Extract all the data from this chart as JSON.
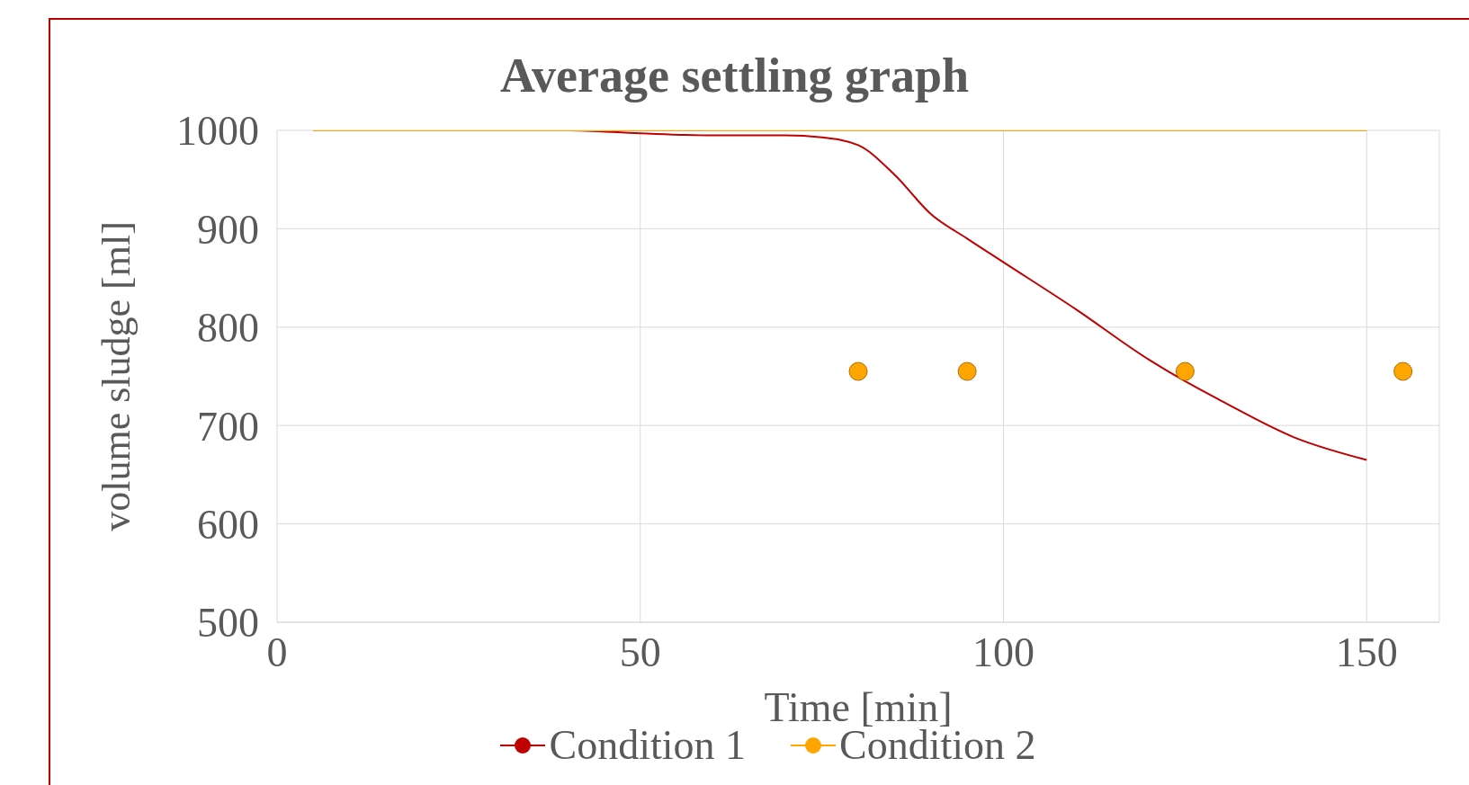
{
  "chart_data": {
    "type": "line",
    "title": "Average settling graph",
    "xlabel": "Time [min]",
    "ylabel": "volume sludge [ml]",
    "xlim": [
      0,
      160
    ],
    "xticks": [
      0,
      50,
      100,
      150
    ],
    "ylim": [
      500,
      1000
    ],
    "yticks": [
      500,
      600,
      700,
      800,
      900,
      1000
    ],
    "grid": true,
    "legend": "bottom",
    "marker": "none",
    "line_style": "solid",
    "series": [
      {
        "name": "Condition 1",
        "color": "#c00000",
        "x": [
          5,
          20,
          40,
          50,
          60,
          70,
          75,
          80,
          85,
          90,
          95,
          100,
          110,
          120,
          125,
          130,
          140,
          150
        ],
        "values": [
          1000,
          1000,
          1000,
          997,
          995,
          995,
          993,
          985,
          955,
          915,
          890,
          866,
          818,
          767,
          745,
          725,
          688,
          665
        ]
      },
      {
        "name": "Condition 2",
        "color": "#ffa500",
        "x": [
          5,
          50,
          100,
          150
        ],
        "values": [
          1000,
          1000,
          1000,
          1000
        ]
      },
      {
        "type": "scatter",
        "marker": "circle",
        "color": "#ffa500",
        "x": [
          80,
          95,
          125,
          155
        ],
        "values": [
          755,
          755,
          755,
          755
        ]
      }
    ]
  }
}
